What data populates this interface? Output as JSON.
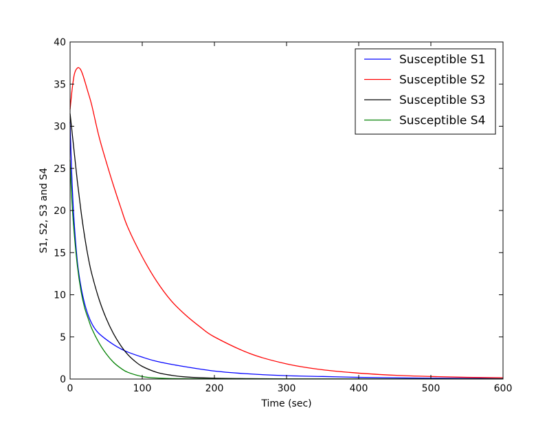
{
  "chart_data": {
    "type": "line",
    "xlabel": "Time (sec)",
    "ylabel": "S1, S2, S3 and S4",
    "xlim": [
      0,
      600
    ],
    "ylim": [
      0,
      40
    ],
    "xticks": [
      0,
      100,
      200,
      300,
      400,
      500,
      600
    ],
    "yticks": [
      0,
      5,
      10,
      15,
      20,
      25,
      30,
      35,
      40
    ],
    "grid": false,
    "legend_position": "top-right",
    "series": [
      {
        "name": "Susceptible S1",
        "color": "#0000ff",
        "x": [
          0,
          2,
          5,
          10,
          15,
          20,
          25,
          30,
          35,
          40,
          50,
          60,
          70,
          80,
          100,
          120,
          150,
          200,
          250,
          300,
          350,
          400,
          450,
          500,
          550,
          600
        ],
        "y": [
          30.5,
          25.0,
          19.5,
          14.0,
          11.0,
          9.0,
          7.6,
          6.6,
          5.9,
          5.4,
          4.7,
          4.1,
          3.6,
          3.2,
          2.6,
          2.1,
          1.6,
          0.95,
          0.6,
          0.4,
          0.3,
          0.2,
          0.15,
          0.1,
          0.08,
          0.05
        ]
      },
      {
        "name": "Susceptible S2",
        "color": "#ff0000",
        "x": [
          0,
          3,
          6,
          10,
          14,
          18,
          25,
          30,
          40,
          50,
          60,
          70,
          80,
          100,
          120,
          140,
          160,
          180,
          200,
          250,
          300,
          350,
          400,
          450,
          500,
          550,
          600
        ],
        "y": [
          32.0,
          34.5,
          36.2,
          36.9,
          36.8,
          36.0,
          34.0,
          32.5,
          28.8,
          25.8,
          23.0,
          20.4,
          18.0,
          14.5,
          11.6,
          9.3,
          7.6,
          6.2,
          5.0,
          3.0,
          1.8,
          1.1,
          0.7,
          0.45,
          0.3,
          0.2,
          0.15
        ]
      },
      {
        "name": "Susceptible S3",
        "color": "#000000",
        "x": [
          0,
          5,
          10,
          15,
          20,
          25,
          30,
          40,
          50,
          60,
          70,
          80,
          90,
          100,
          120,
          140,
          160,
          200,
          250,
          300,
          400,
          500,
          600
        ],
        "y": [
          31.5,
          27.5,
          23.5,
          20.0,
          17.0,
          14.5,
          12.5,
          9.5,
          7.2,
          5.4,
          4.0,
          2.9,
          2.1,
          1.5,
          0.8,
          0.45,
          0.25,
          0.1,
          0.05,
          0.02,
          0.01,
          0.01,
          0.01
        ]
      },
      {
        "name": "Susceptible S4",
        "color": "#008000",
        "x": [
          0,
          2,
          5,
          10,
          15,
          20,
          25,
          30,
          40,
          50,
          60,
          70,
          80,
          100,
          120,
          150,
          200,
          300,
          400,
          500,
          600
        ],
        "y": [
          26.0,
          22.0,
          18.0,
          13.5,
          10.5,
          8.5,
          7.2,
          6.0,
          4.3,
          3.0,
          2.0,
          1.3,
          0.8,
          0.3,
          0.12,
          0.04,
          0.01,
          0.01,
          0.01,
          0.01,
          0.01
        ]
      }
    ]
  }
}
